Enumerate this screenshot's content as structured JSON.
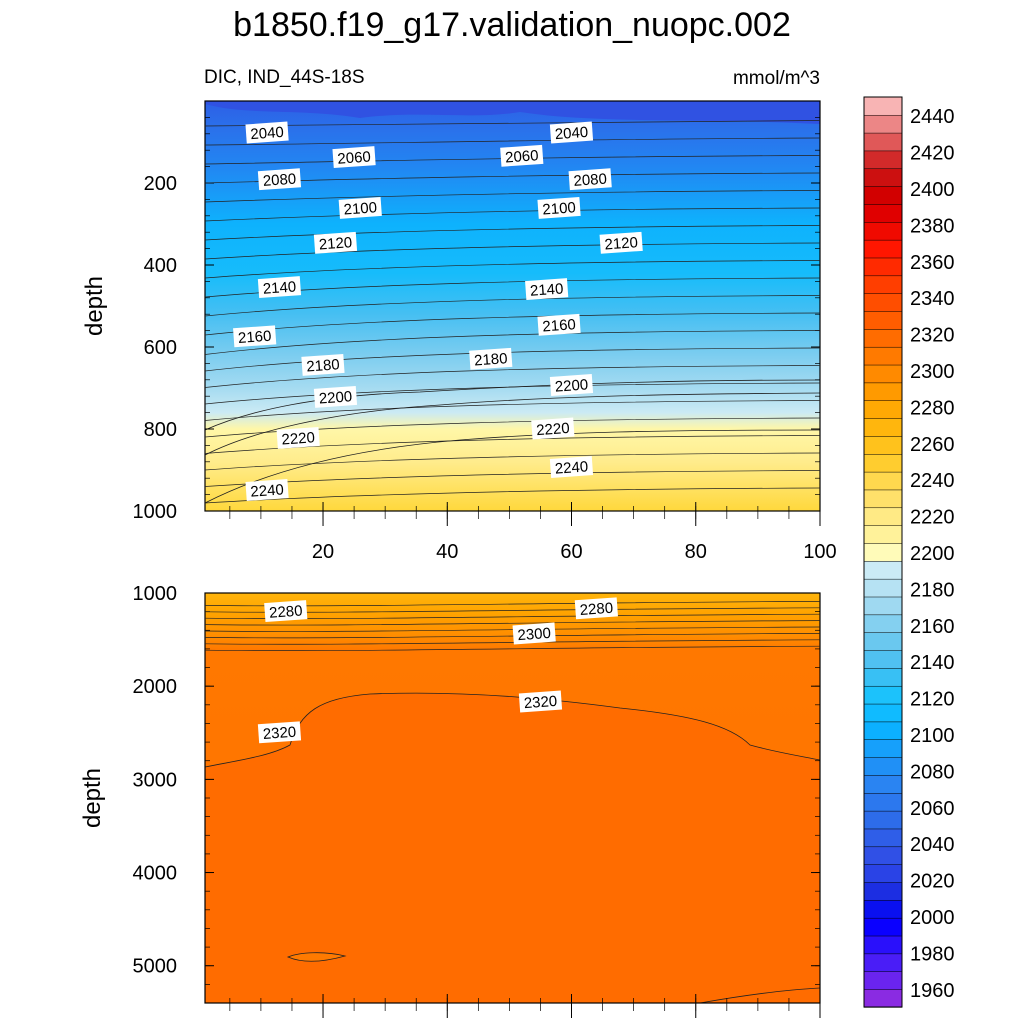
{
  "title": "b1850.f19_g17.validation_nuopc.002",
  "chart_data": {
    "type": "contour",
    "variable_label": "DIC, IND_44S-18S",
    "units": "mmol/m^3",
    "xlim": [
      1,
      100
    ],
    "x_ticks": [
      "20",
      "40",
      "60",
      "80",
      "100"
    ],
    "x_tick_values": [
      20,
      40,
      60,
      80,
      100
    ],
    "panels": [
      {
        "ylabel": "depth",
        "ylim": [
          0,
          1000
        ],
        "y_ticks": [
          "200",
          "400",
          "600",
          "800",
          "1000"
        ],
        "y_tick_values": [
          200,
          400,
          600,
          800,
          1000
        ],
        "contour_labels": [
          {
            "text": "2040",
            "x": 11,
            "y": 78
          },
          {
            "text": "2040",
            "x": 60,
            "y": 78
          },
          {
            "text": "2060",
            "x": 25,
            "y": 138
          },
          {
            "text": "2060",
            "x": 52,
            "y": 135
          },
          {
            "text": "2080",
            "x": 13,
            "y": 192
          },
          {
            "text": "2080",
            "x": 63,
            "y": 192
          },
          {
            "text": "2100",
            "x": 26,
            "y": 262
          },
          {
            "text": "2100",
            "x": 58,
            "y": 262
          },
          {
            "text": "2120",
            "x": 22,
            "y": 347
          },
          {
            "text": "2120",
            "x": 68,
            "y": 347
          },
          {
            "text": "2140",
            "x": 13,
            "y": 455
          },
          {
            "text": "2140",
            "x": 56,
            "y": 460
          },
          {
            "text": "2160",
            "x": 9,
            "y": 575
          },
          {
            "text": "2160",
            "x": 58,
            "y": 547
          },
          {
            "text": "2180",
            "x": 20,
            "y": 645
          },
          {
            "text": "2180",
            "x": 47,
            "y": 630
          },
          {
            "text": "2200",
            "x": 22,
            "y": 723
          },
          {
            "text": "2200",
            "x": 60,
            "y": 694
          },
          {
            "text": "2220",
            "x": 16,
            "y": 823
          },
          {
            "text": "2220",
            "x": 57,
            "y": 800
          },
          {
            "text": "2240",
            "x": 11,
            "y": 950
          },
          {
            "text": "2240",
            "x": 60,
            "y": 894
          }
        ]
      },
      {
        "ylabel": "depth",
        "ylim": [
          1000,
          5400
        ],
        "y_ticks": [
          "1000",
          "2000",
          "3000",
          "4000",
          "5000"
        ],
        "y_tick_values": [
          1000,
          2000,
          3000,
          4000,
          5000
        ],
        "contour_labels": [
          {
            "text": "2280",
            "x": 14,
            "y": 1200
          },
          {
            "text": "2280",
            "x": 64,
            "y": 1170
          },
          {
            "text": "2300",
            "x": 54,
            "y": 1440
          },
          {
            "text": "2320",
            "x": 13,
            "y": 2500
          },
          {
            "text": "2320",
            "x": 55,
            "y": 2170
          }
        ]
      }
    ],
    "colorbar": {
      "tick_labels": [
        "1960",
        "1980",
        "2000",
        "2020",
        "2040",
        "2060",
        "2080",
        "2100",
        "2120",
        "2140",
        "2160",
        "2180",
        "2200",
        "2220",
        "2240",
        "2260",
        "2280",
        "2300",
        "2320",
        "2340",
        "2360",
        "2380",
        "2400",
        "2420",
        "2440"
      ],
      "levels_bottom_to_top": [
        1950,
        1960,
        1970,
        1980,
        1990,
        2000,
        2010,
        2020,
        2030,
        2040,
        2050,
        2060,
        2070,
        2080,
        2090,
        2100,
        2110,
        2120,
        2130,
        2140,
        2150,
        2160,
        2170,
        2180,
        2190,
        2200,
        2210,
        2220,
        2230,
        2240,
        2250,
        2260,
        2270,
        2280,
        2290,
        2300,
        2310,
        2320,
        2330,
        2340,
        2350,
        2360,
        2370,
        2380,
        2390,
        2400,
        2410,
        2420,
        2430,
        2440,
        2450
      ],
      "colors_bottom_to_top": [
        "#8a2be2",
        "#6a24ef",
        "#4a1df7",
        "#2a10fb",
        "#0a00ff",
        "#0a10f0",
        "#1c2ee2",
        "#2a43e6",
        "#3050e6",
        "#2f5ee8",
        "#2d6cea",
        "#2c78ee",
        "#2a84f2",
        "#2090f6",
        "#16a0fb",
        "#0cb0ff",
        "#10bbff",
        "#1cc2fb",
        "#38c0f4",
        "#50c1f1",
        "#6ac8ef",
        "#84d0f0",
        "#9fd9f1",
        "#b6e2f3",
        "#cbebf6",
        "#fffbb9",
        "#fff29a",
        "#ffea85",
        "#ffe06a",
        "#ffd84e",
        "#ffcd2f",
        "#ffc21c",
        "#ffb60d",
        "#ffa904",
        "#ff9a00",
        "#ff8a00",
        "#ff7a00",
        "#ff6c00",
        "#ff5d00",
        "#ff4e00",
        "#ff3e00",
        "#ff2a00",
        "#ff1600",
        "#f00a00",
        "#e00000",
        "#d20000",
        "#cc1010",
        "#d22a2a",
        "#e05858",
        "#ec8686",
        "#f8b4b4"
      ]
    }
  }
}
